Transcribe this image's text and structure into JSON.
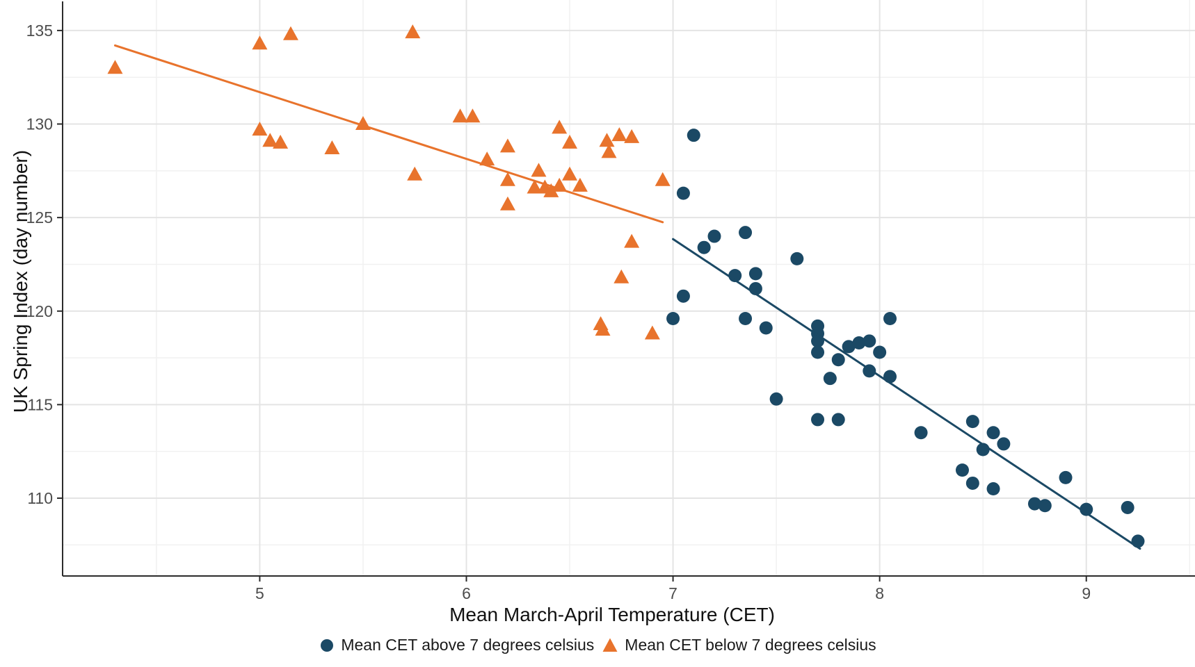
{
  "chart_data": {
    "type": "scatter",
    "title": "",
    "xlabel": "Mean March-April Temperature (CET)",
    "ylabel": "UK Spring Index (day number)",
    "x_ticks": [
      5,
      6,
      7,
      8,
      9
    ],
    "y_ticks": [
      110,
      115,
      120,
      125,
      130,
      135
    ],
    "x_minor": [
      4.5,
      5.5,
      6.5,
      7.5,
      8.5,
      9.5
    ],
    "y_minor": [
      107.5,
      112.5,
      117.5,
      122.5,
      127.5,
      132.5
    ],
    "xlim": [
      4.046,
      9.526
    ],
    "ylim": [
      105.84,
      136.63
    ],
    "grid": true,
    "legend_position": "bottom",
    "colors": {
      "above": "#1B4965",
      "below": "#E8732C",
      "grid_major": "#e4e4e4",
      "grid_minor": "#f1f1f1",
      "axis_line": "#2b2b2b",
      "tick_label": "#4d4d4d"
    },
    "series": [
      {
        "name": "Mean CET above 7 degrees celsius",
        "marker": "circle",
        "color": "#1B4965",
        "trend": {
          "x1": 7.0,
          "y1": 123.85,
          "x2": 9.26,
          "y2": 107.3
        },
        "points": [
          [
            7.1,
            129.4
          ],
          [
            7.05,
            126.3
          ],
          [
            7.0,
            119.6
          ],
          [
            7.05,
            120.8
          ],
          [
            7.15,
            123.4
          ],
          [
            7.2,
            124.0
          ],
          [
            7.35,
            124.2
          ],
          [
            7.3,
            121.9
          ],
          [
            7.4,
            122.0
          ],
          [
            7.4,
            121.2
          ],
          [
            7.6,
            122.8
          ],
          [
            7.35,
            119.6
          ],
          [
            7.45,
            119.1
          ],
          [
            7.7,
            119.2
          ],
          [
            7.7,
            118.8
          ],
          [
            7.7,
            118.4
          ],
          [
            7.7,
            117.8
          ],
          [
            7.8,
            117.4
          ],
          [
            7.85,
            118.1
          ],
          [
            7.9,
            118.3
          ],
          [
            7.95,
            118.4
          ],
          [
            8.0,
            117.8
          ],
          [
            8.05,
            119.6
          ],
          [
            7.76,
            116.4
          ],
          [
            7.95,
            116.8
          ],
          [
            8.05,
            116.5
          ],
          [
            7.5,
            115.3
          ],
          [
            7.7,
            114.2
          ],
          [
            7.8,
            114.2
          ],
          [
            8.2,
            113.5
          ],
          [
            8.45,
            114.1
          ],
          [
            8.55,
            113.5
          ],
          [
            8.6,
            112.9
          ],
          [
            8.5,
            112.6
          ],
          [
            8.4,
            111.5
          ],
          [
            8.45,
            110.8
          ],
          [
            8.55,
            110.5
          ],
          [
            8.75,
            109.7
          ],
          [
            8.8,
            109.6
          ],
          [
            8.9,
            111.1
          ],
          [
            9.0,
            109.4
          ],
          [
            9.2,
            109.5
          ],
          [
            9.25,
            107.7
          ]
        ]
      },
      {
        "name": "Mean CET below 7 degrees celsius",
        "marker": "triangle",
        "color": "#E8732C",
        "trend": {
          "x1": 4.3,
          "y1": 134.2,
          "x2": 6.95,
          "y2": 124.75
        },
        "points": [
          [
            4.3,
            133.0
          ],
          [
            5.0,
            134.3
          ],
          [
            5.15,
            134.8
          ],
          [
            5.74,
            134.9
          ],
          [
            5.0,
            129.7
          ],
          [
            5.05,
            129.1
          ],
          [
            5.1,
            129.0
          ],
          [
            5.35,
            128.7
          ],
          [
            5.5,
            130.0
          ],
          [
            5.97,
            130.4
          ],
          [
            6.03,
            130.4
          ],
          [
            5.75,
            127.3
          ],
          [
            6.1,
            128.1
          ],
          [
            6.2,
            128.8
          ],
          [
            6.35,
            127.5
          ],
          [
            6.2,
            127.0
          ],
          [
            6.2,
            125.7
          ],
          [
            6.33,
            126.6
          ],
          [
            6.38,
            126.6
          ],
          [
            6.41,
            126.4
          ],
          [
            6.45,
            126.7
          ],
          [
            6.5,
            127.3
          ],
          [
            6.55,
            126.7
          ],
          [
            6.5,
            129.0
          ],
          [
            6.45,
            129.8
          ],
          [
            6.68,
            129.1
          ],
          [
            6.74,
            129.4
          ],
          [
            6.8,
            129.3
          ],
          [
            6.69,
            128.5
          ],
          [
            6.95,
            127.0
          ],
          [
            6.8,
            123.7
          ],
          [
            6.75,
            121.8
          ],
          [
            6.65,
            119.3
          ],
          [
            6.66,
            119.0
          ],
          [
            6.9,
            118.8
          ]
        ]
      }
    ]
  }
}
